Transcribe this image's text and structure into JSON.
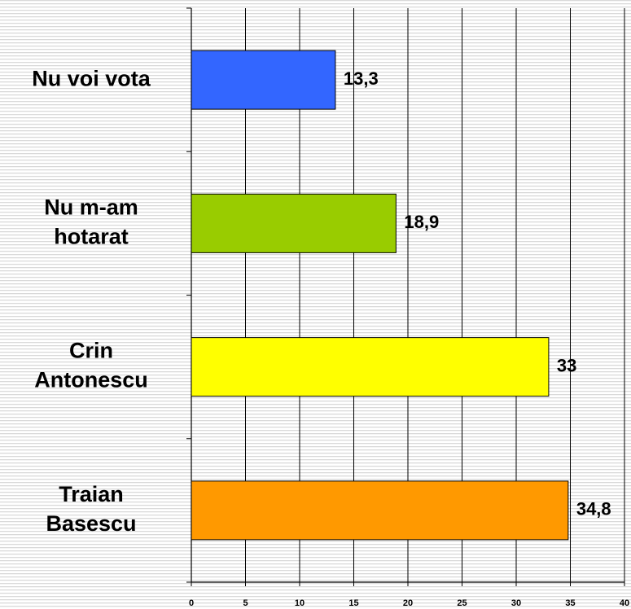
{
  "chart_data": {
    "type": "bar",
    "orientation": "horizontal",
    "categories": [
      "Nu voi vota",
      "Nu m-am hotarat",
      "Crin Antonescu",
      "Traian Basescu"
    ],
    "values": [
      13.3,
      18.9,
      33,
      34.8
    ],
    "value_labels": [
      "13,3",
      "18,9",
      "33",
      "34,8"
    ],
    "colors": [
      "#3366ff",
      "#99cc00",
      "#ffff00",
      "#ff9900"
    ],
    "xlim": [
      0,
      40
    ],
    "xticks": [
      0,
      5,
      10,
      15,
      20,
      25,
      30,
      35,
      40
    ],
    "grid": true
  }
}
